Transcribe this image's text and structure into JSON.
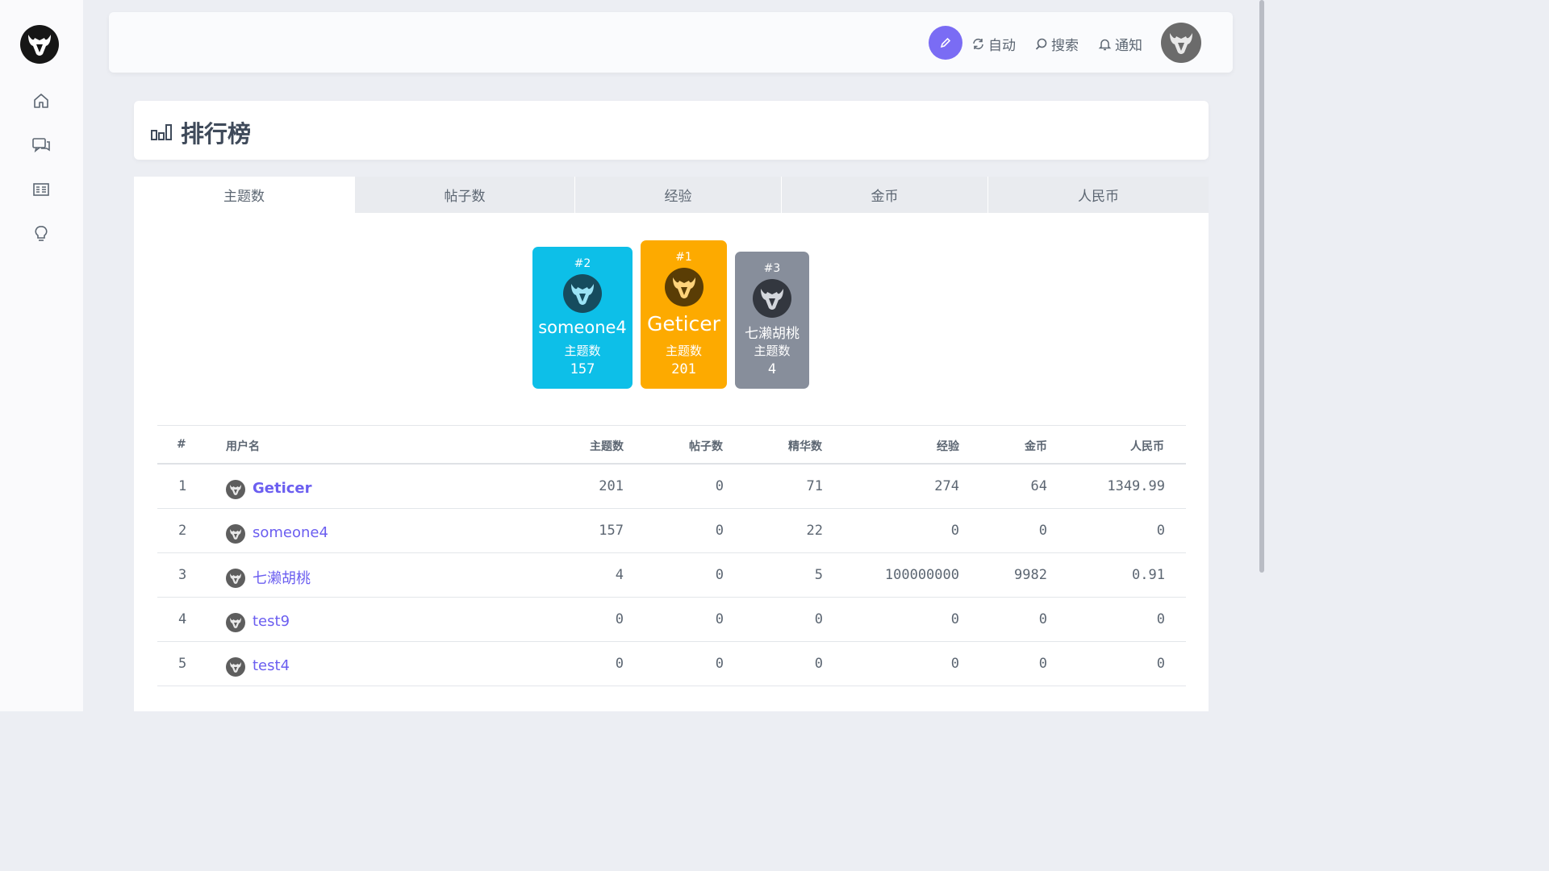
{
  "header": {
    "auto_label": "自动",
    "search_label": "搜索",
    "notify_label": "通知"
  },
  "page": {
    "title": "排行榜"
  },
  "tabs": [
    "主题数",
    "帖子数",
    "经验",
    "金币",
    "人民币"
  ],
  "podium": [
    {
      "rank": "#2",
      "name": "someone4",
      "label": "主题数",
      "value": "157",
      "color": "#0dbfe8"
    },
    {
      "rank": "#1",
      "name": "Geticer",
      "label": "主题数",
      "value": "201",
      "color": "#fdaa00"
    },
    {
      "rank": "#3",
      "name": "七濑胡桃",
      "label": "主题数",
      "value": "4",
      "color": "#878e9b"
    }
  ],
  "table": {
    "headers": [
      "#",
      "用户名",
      "主题数",
      "帖子数",
      "精华数",
      "经验",
      "金币",
      "人民币"
    ],
    "rows": [
      {
        "rank": "1",
        "name": "Geticer",
        "topics": "201",
        "posts": "0",
        "digest": "71",
        "exp": "274",
        "coins": "64",
        "rmb": "1349.99"
      },
      {
        "rank": "2",
        "name": "someone4",
        "topics": "157",
        "posts": "0",
        "digest": "22",
        "exp": "0",
        "coins": "0",
        "rmb": "0"
      },
      {
        "rank": "3",
        "name": "七濑胡桃",
        "topics": "4",
        "posts": "0",
        "digest": "5",
        "exp": "100000000",
        "coins": "9982",
        "rmb": "0.91"
      },
      {
        "rank": "4",
        "name": "test9",
        "topics": "0",
        "posts": "0",
        "digest": "0",
        "exp": "0",
        "coins": "0",
        "rmb": "0"
      },
      {
        "rank": "5",
        "name": "test4",
        "topics": "0",
        "posts": "0",
        "digest": "0",
        "exp": "0",
        "coins": "0",
        "rmb": "0"
      }
    ]
  },
  "colors": {
    "accent": "#7a6cf4",
    "link": "#6b5ef0",
    "first": "#fdaa00",
    "second": "#0dbfe8",
    "third": "#878e9b"
  }
}
